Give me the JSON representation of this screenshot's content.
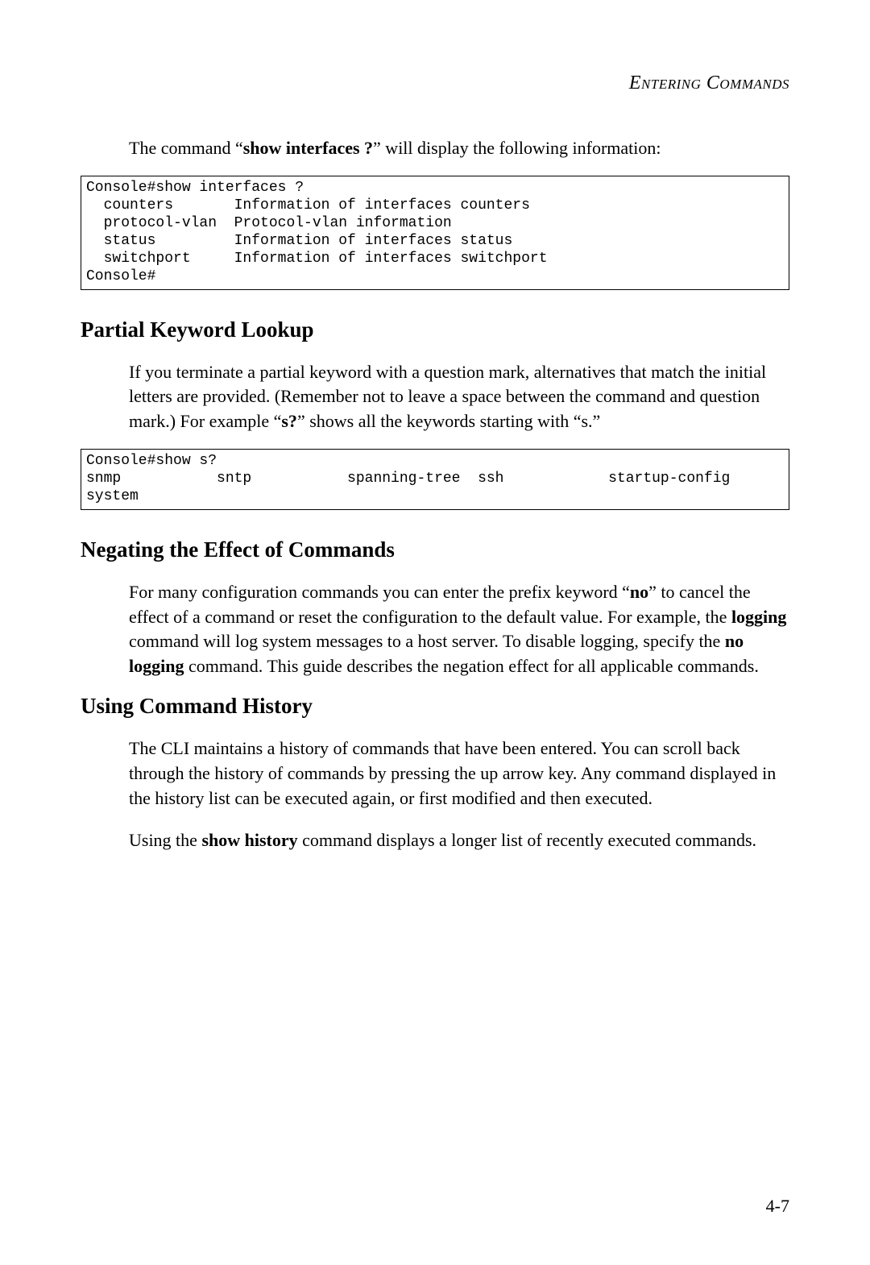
{
  "runningHead": "Entering Commands",
  "intro": {
    "pre": "The command “",
    "cmd": "show interfaces ?",
    "post": "” will display the following information:"
  },
  "codebox1": "Console#show interfaces ?\n  counters       Information of interfaces counters\n  protocol-vlan  Protocol-vlan information\n  status         Information of interfaces status\n  switchport     Information of interfaces switchport\nConsole#",
  "section1": {
    "heading": "Partial Keyword Lookup",
    "p_pre": "If you terminate a partial keyword with a question mark, alternatives that match the initial letters are provided. (Remember not to leave a space between the command and question mark.) For example “",
    "p_cmd": "s?",
    "p_post": "” shows all the keywords starting with “s.”"
  },
  "codebox2": "Console#show s?\nsnmp           sntp           spanning-tree  ssh            startup-config\nsystem",
  "section2": {
    "heading": "Negating the Effect of Commands",
    "p_a": "For many configuration commands you can enter the prefix keyword “",
    "p_no": "no",
    "p_b": "” to cancel the effect of a command or reset the configuration to the default value. For example, the ",
    "p_logging": "logging",
    "p_c": " command will log system messages to a host server. To disable logging, specify the ",
    "p_nologging": "no logging",
    "p_d": " command. This guide describes the negation effect for all applicable commands."
  },
  "section3": {
    "heading": "Using Command History",
    "p1": "The CLI maintains a history of commands that have been entered. You can scroll back through the history of commands by pressing the up arrow key. Any command displayed in the history list can be executed again, or first modified and then executed.",
    "p2_a": "Using the ",
    "p2_cmd": "show history",
    "p2_b": " command displays a longer list of recently executed commands."
  },
  "pageNumber": "4-7"
}
